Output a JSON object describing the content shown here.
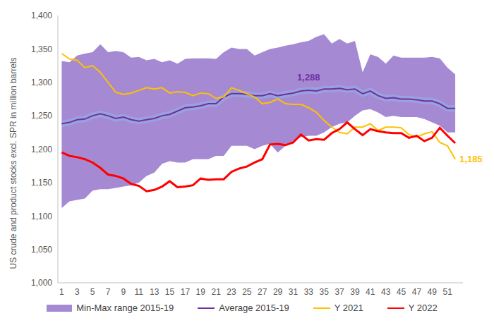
{
  "chart_data": {
    "type": "line",
    "y_label": "US crude and product stocks excl. SPR in million barrels",
    "x": [
      1,
      2,
      3,
      4,
      5,
      6,
      7,
      8,
      9,
      10,
      11,
      12,
      13,
      14,
      15,
      16,
      17,
      18,
      19,
      20,
      21,
      22,
      23,
      24,
      25,
      26,
      27,
      28,
      29,
      30,
      31,
      32,
      33,
      34,
      35,
      36,
      37,
      38,
      39,
      40,
      41,
      42,
      43,
      44,
      45,
      46,
      47,
      48,
      49,
      50,
      51,
      52
    ],
    "xlim": [
      0.5,
      53
    ],
    "xticks": [
      1,
      3,
      5,
      7,
      9,
      11,
      13,
      15,
      17,
      19,
      21,
      23,
      25,
      27,
      29,
      31,
      33,
      35,
      37,
      39,
      41,
      43,
      45,
      47,
      49,
      51
    ],
    "ylim": [
      1000,
      1400
    ],
    "yticks": [
      {
        "value": 1000,
        "label": "1,000"
      },
      {
        "value": 1050,
        "label": "1,050"
      },
      {
        "value": 1100,
        "label": "1,100"
      },
      {
        "value": 1150,
        "label": "1,150"
      },
      {
        "value": 1200,
        "label": "1,200"
      },
      {
        "value": 1250,
        "label": "1,250"
      },
      {
        "value": 1300,
        "label": "1,300"
      },
      {
        "value": 1350,
        "label": "1,350"
      },
      {
        "value": 1400,
        "label": "1,400"
      }
    ],
    "grid": false,
    "legend": "bottom",
    "series": [
      {
        "name": "Min-Max range 2015-19",
        "type": "range",
        "color": "#a58ad3",
        "values": [
          [
            1112,
            1332
          ],
          [
            1122,
            1330
          ],
          [
            1124,
            1340
          ],
          [
            1126,
            1343
          ],
          [
            1138,
            1345
          ],
          [
            1140,
            1357
          ],
          [
            1140,
            1345
          ],
          [
            1142,
            1347
          ],
          [
            1144,
            1345
          ],
          [
            1146,
            1337
          ],
          [
            1150,
            1338
          ],
          [
            1160,
            1333
          ],
          [
            1165,
            1335
          ],
          [
            1178,
            1330
          ],
          [
            1182,
            1333
          ],
          [
            1180,
            1328
          ],
          [
            1180,
            1335
          ],
          [
            1185,
            1336
          ],
          [
            1185,
            1336
          ],
          [
            1185,
            1336
          ],
          [
            1190,
            1335
          ],
          [
            1190,
            1345
          ],
          [
            1205,
            1352
          ],
          [
            1205,
            1350
          ],
          [
            1205,
            1350
          ],
          [
            1200,
            1340
          ],
          [
            1205,
            1345
          ],
          [
            1208,
            1350
          ],
          [
            1195,
            1352
          ],
          [
            1205,
            1355
          ],
          [
            1212,
            1357
          ],
          [
            1218,
            1360
          ],
          [
            1220,
            1362
          ],
          [
            1220,
            1368
          ],
          [
            1225,
            1372
          ],
          [
            1233,
            1358
          ],
          [
            1238,
            1365
          ],
          [
            1240,
            1358
          ],
          [
            1250,
            1362
          ],
          [
            1258,
            1315
          ],
          [
            1260,
            1342
          ],
          [
            1255,
            1338
          ],
          [
            1248,
            1328
          ],
          [
            1250,
            1340
          ],
          [
            1248,
            1337
          ],
          [
            1248,
            1337
          ],
          [
            1248,
            1337
          ],
          [
            1245,
            1337
          ],
          [
            1240,
            1338
          ],
          [
            1235,
            1336
          ],
          [
            1225,
            1322
          ],
          [
            1225,
            1312
          ]
        ]
      },
      {
        "name": "Average 2015-19",
        "type": "line",
        "color": "#7030a0",
        "values": [
          1238,
          1240,
          1244,
          1245,
          1250,
          1253,
          1250,
          1246,
          1248,
          1244,
          1242,
          1244,
          1246,
          1250,
          1252,
          1257,
          1262,
          1263,
          1265,
          1268,
          1268,
          1278,
          1283,
          1283,
          1282,
          1280,
          1280,
          1283,
          1280,
          1282,
          1284,
          1287,
          1288,
          1287,
          1290,
          1290,
          1291,
          1289,
          1290,
          1283,
          1287,
          1280,
          1276,
          1277,
          1275,
          1275,
          1274,
          1272,
          1272,
          1268,
          1261,
          1261
        ]
      },
      {
        "name": "Y 2021",
        "type": "line",
        "color": "#ffc000",
        "values": [
          1343,
          1335,
          1333,
          1322,
          1325,
          1315,
          1300,
          1285,
          1282,
          1284,
          1288,
          1292,
          1290,
          1292,
          1284,
          1286,
          1285,
          1280,
          1284,
          1283,
          1276,
          1278,
          1292,
          1288,
          1283,
          1278,
          1268,
          1270,
          1275,
          1268,
          1267,
          1267,
          1262,
          1255,
          1243,
          1233,
          1225,
          1223,
          1233,
          1233,
          1238,
          1228,
          1233,
          1233,
          1232,
          1222,
          1218,
          1223,
          1226,
          1210,
          1205,
          1185
        ]
      },
      {
        "name": "Y 2022",
        "type": "line",
        "color": "#ff0000",
        "values": [
          1195,
          1190,
          1188,
          1185,
          1180,
          1172,
          1162,
          1160,
          1156,
          1148,
          1145,
          1137,
          1139,
          1144,
          1152,
          1143,
          1144,
          1146,
          1156,
          1154,
          1155,
          1155,
          1166,
          1171,
          1174,
          1180,
          1185,
          1207,
          1208,
          1206,
          1210,
          1222,
          1213,
          1215,
          1214,
          1224,
          1230,
          1240,
          1230,
          1221,
          1230,
          1227,
          1225,
          1224,
          1224,
          1217,
          1220,
          1212,
          1217,
          1232,
          1220,
          1209
        ]
      }
    ],
    "annotations": [
      {
        "text": "1,288",
        "x": 33,
        "y": 1288,
        "series": "Average 2015-19"
      },
      {
        "text": "1,185",
        "x": 52,
        "y": 1185,
        "series": "Y 2021"
      }
    ]
  }
}
